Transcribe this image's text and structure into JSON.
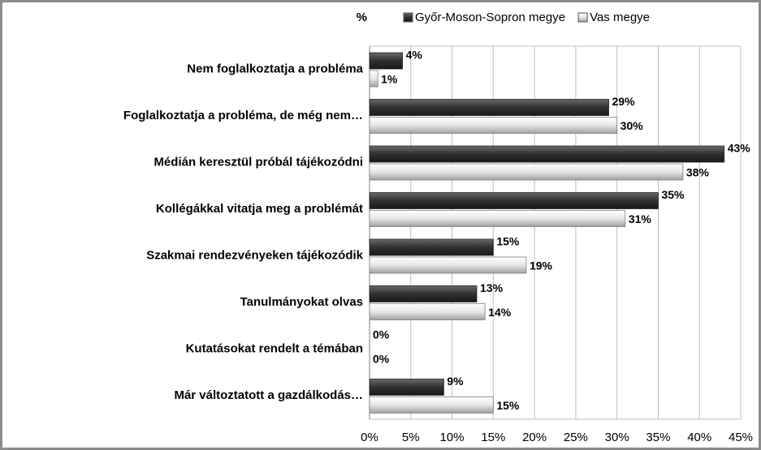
{
  "chart_data": {
    "type": "bar",
    "orientation": "horizontal",
    "y_unit_label": "%",
    "categories": [
      "Nem foglalkoztatja a probléma",
      "Foglalkoztatja a probléma, de még nem…",
      "Médián keresztül próbál tájékozódni",
      "Kollégákkal vitatja meg a problémát",
      "Szakmai rendezvényeken tájékozódik",
      "Tanulmányokat olvas",
      "Kutatásokat rendelt a témában",
      "Már változtatott a gazdálkodás…"
    ],
    "series": [
      {
        "name": "Győr-Moson-Sopron megye",
        "color": "#404040",
        "values": [
          4,
          29,
          43,
          35,
          15,
          13,
          0,
          9
        ],
        "value_labels": [
          "4%",
          "29%",
          "43%",
          "35%",
          "15%",
          "13%",
          "0%",
          "9%"
        ]
      },
      {
        "name": "Vas megye",
        "color": "#d9d9d9",
        "values": [
          1,
          30,
          38,
          31,
          19,
          14,
          0,
          15
        ],
        "value_labels": [
          "1%",
          "30%",
          "38%",
          "31%",
          "19%",
          "14%",
          "0%",
          "15%"
        ]
      }
    ],
    "xlim": [
      0,
      45
    ],
    "xticks": [
      {
        "value": 0,
        "label": "0%"
      },
      {
        "value": 5,
        "label": "5%"
      },
      {
        "value": 10,
        "label": "10%"
      },
      {
        "value": 15,
        "label": "15%"
      },
      {
        "value": 20,
        "label": "20%"
      },
      {
        "value": 25,
        "label": "25%"
      },
      {
        "value": 30,
        "label": "30%"
      },
      {
        "value": 35,
        "label": "35%"
      },
      {
        "value": 40,
        "label": "40%"
      },
      {
        "value": 45,
        "label": "45%"
      }
    ],
    "grid": true,
    "legend": "top"
  }
}
